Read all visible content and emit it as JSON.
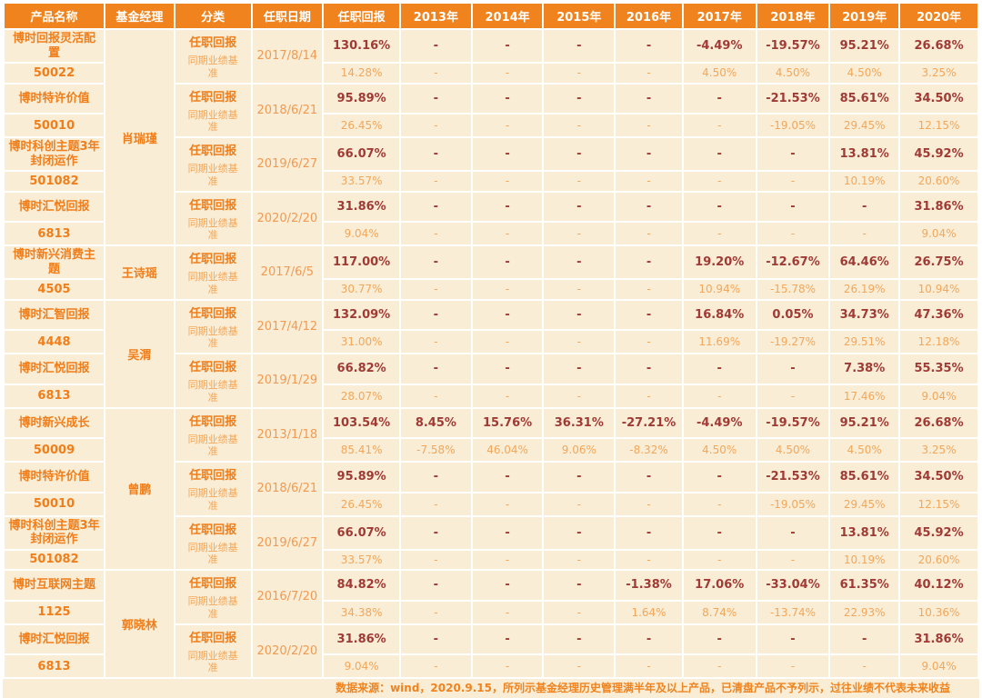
{
  "colors": {
    "header_bg": "#F0831D",
    "cell_bg": "#FAEDD5",
    "accent": "#EF7E1B",
    "value": "#A03A35",
    "benchmark": "#F2A75B",
    "date": "#F19A52"
  },
  "chart_data": {
    "type": "table",
    "columns": [
      "产品名称",
      "基金经理",
      "分类",
      "任职日期",
      "任职回报",
      "2013年",
      "2014年",
      "2015年",
      "2016年",
      "2017年",
      "2018年",
      "2019年",
      "2020年"
    ],
    "row_labels": {
      "tenure": "任职回报",
      "benchmark": "同期业绩基准"
    },
    "managers": [
      {
        "name": "肖瑞瑾",
        "products": [
          {
            "name": "博时回报灵活配置",
            "code": "50022",
            "date": "2017/8/14",
            "tenure_return": [
              "130.16%",
              "-",
              "-",
              "-",
              "-",
              "-4.49%",
              "-19.57%",
              "95.21%",
              "26.68%"
            ],
            "benchmark": [
              "14.28%",
              "-",
              "-",
              "-",
              "-",
              "4.50%",
              "4.50%",
              "4.50%",
              "3.25%"
            ]
          },
          {
            "name": "博时特许价值",
            "code": "50010",
            "date": "2018/6/21",
            "tenure_return": [
              "95.89%",
              "-",
              "-",
              "-",
              "-",
              "-",
              "-21.53%",
              "85.61%",
              "34.50%"
            ],
            "benchmark": [
              "26.45%",
              "-",
              "-",
              "-",
              "-",
              "-",
              "-19.05%",
              "29.45%",
              "12.15%"
            ]
          },
          {
            "name": "博时科创主题3年封闭运作",
            "code": "501082",
            "date": "2019/6/27",
            "tenure_return": [
              "66.07%",
              "-",
              "-",
              "-",
              "-",
              "-",
              "-",
              "13.81%",
              "45.92%"
            ],
            "benchmark": [
              "33.57%",
              "-",
              "-",
              "-",
              "-",
              "-",
              "-",
              "10.19%",
              "20.60%"
            ]
          },
          {
            "name": "博时汇悦回报",
            "code": "6813",
            "date": "2020/2/20",
            "tenure_return": [
              "31.86%",
              "-",
              "-",
              "-",
              "-",
              "-",
              "-",
              "-",
              "31.86%"
            ],
            "benchmark": [
              "9.04%",
              "-",
              "-",
              "-",
              "-",
              "-",
              "-",
              "-",
              "9.04%"
            ]
          }
        ]
      },
      {
        "name": "王诗瑶",
        "products": [
          {
            "name": "博时新兴消费主题",
            "code": "4505",
            "date": "2017/6/5",
            "tenure_return": [
              "117.00%",
              "-",
              "-",
              "-",
              "-",
              "19.20%",
              "-12.67%",
              "64.46%",
              "26.75%"
            ],
            "benchmark": [
              "30.77%",
              "-",
              "-",
              "-",
              "-",
              "10.94%",
              "-15.78%",
              "26.19%",
              "10.94%"
            ]
          }
        ]
      },
      {
        "name": "吴渭",
        "products": [
          {
            "name": "博时汇智回报",
            "code": "4448",
            "date": "2017/4/12",
            "tenure_return": [
              "132.09%",
              "-",
              "-",
              "-",
              "-",
              "16.84%",
              "0.05%",
              "34.73%",
              "47.36%"
            ],
            "benchmark": [
              "31.00%",
              "-",
              "-",
              "-",
              "-",
              "11.69%",
              "-19.27%",
              "29.51%",
              "12.18%"
            ]
          },
          {
            "name": "博时汇悦回报",
            "code": "6813",
            "date": "2019/1/29",
            "tenure_return": [
              "66.82%",
              "-",
              "-",
              "-",
              "-",
              "-",
              "-",
              "7.38%",
              "55.35%"
            ],
            "benchmark": [
              "28.07%",
              "-",
              "-",
              "-",
              "-",
              "-",
              "-",
              "17.46%",
              "9.04%"
            ]
          }
        ]
      },
      {
        "name": "曾鹏",
        "products": [
          {
            "name": "博时新兴成长",
            "code": "50009",
            "date": "2013/1/18",
            "tenure_return": [
              "103.54%",
              "8.45%",
              "15.76%",
              "36.31%",
              "-27.21%",
              "-4.49%",
              "-19.57%",
              "95.21%",
              "26.68%"
            ],
            "benchmark": [
              "85.41%",
              "-7.58%",
              "46.04%",
              "9.06%",
              "-8.32%",
              "4.50%",
              "4.50%",
              "4.50%",
              "3.25%"
            ]
          },
          {
            "name": "博时特许价值",
            "code": "50010",
            "date": "2018/6/21",
            "tenure_return": [
              "95.89%",
              "-",
              "-",
              "-",
              "-",
              "-",
              "-21.53%",
              "85.61%",
              "34.50%"
            ],
            "benchmark": [
              "26.45%",
              "-",
              "-",
              "-",
              "-",
              "-",
              "-19.05%",
              "29.45%",
              "12.15%"
            ]
          },
          {
            "name": "博时科创主题3年封闭运作",
            "code": "501082",
            "date": "2019/6/27",
            "tenure_return": [
              "66.07%",
              "-",
              "-",
              "-",
              "-",
              "-",
              "-",
              "13.81%",
              "45.92%"
            ],
            "benchmark": [
              "33.57%",
              "-",
              "-",
              "-",
              "-",
              "-",
              "-",
              "10.19%",
              "20.60%"
            ]
          }
        ]
      },
      {
        "name": "郭晓林",
        "products": [
          {
            "name": "博时互联网主题",
            "code": "1125",
            "date": "2016/7/20",
            "tenure_return": [
              "84.82%",
              "-",
              "-",
              "-",
              "-1.38%",
              "17.06%",
              "-33.04%",
              "61.35%",
              "40.12%"
            ],
            "benchmark": [
              "34.38%",
              "-",
              "-",
              "-",
              "1.64%",
              "8.74%",
              "-13.74%",
              "22.93%",
              "10.36%"
            ]
          },
          {
            "name": "博时汇悦回报",
            "code": "6813",
            "date": "2020/2/20",
            "tenure_return": [
              "31.86%",
              "-",
              "-",
              "-",
              "-",
              "-",
              "-",
              "-",
              "31.86%"
            ],
            "benchmark": [
              "9.04%",
              "-",
              "-",
              "-",
              "-",
              "-",
              "-",
              "-",
              "9.04%"
            ]
          }
        ]
      }
    ],
    "footnote": "数据来源：wind，2020.9.15，所列示基金经理历史管理满半年及以上产品，已清盘产品不予列示，过往业绩不代表未来收益"
  }
}
